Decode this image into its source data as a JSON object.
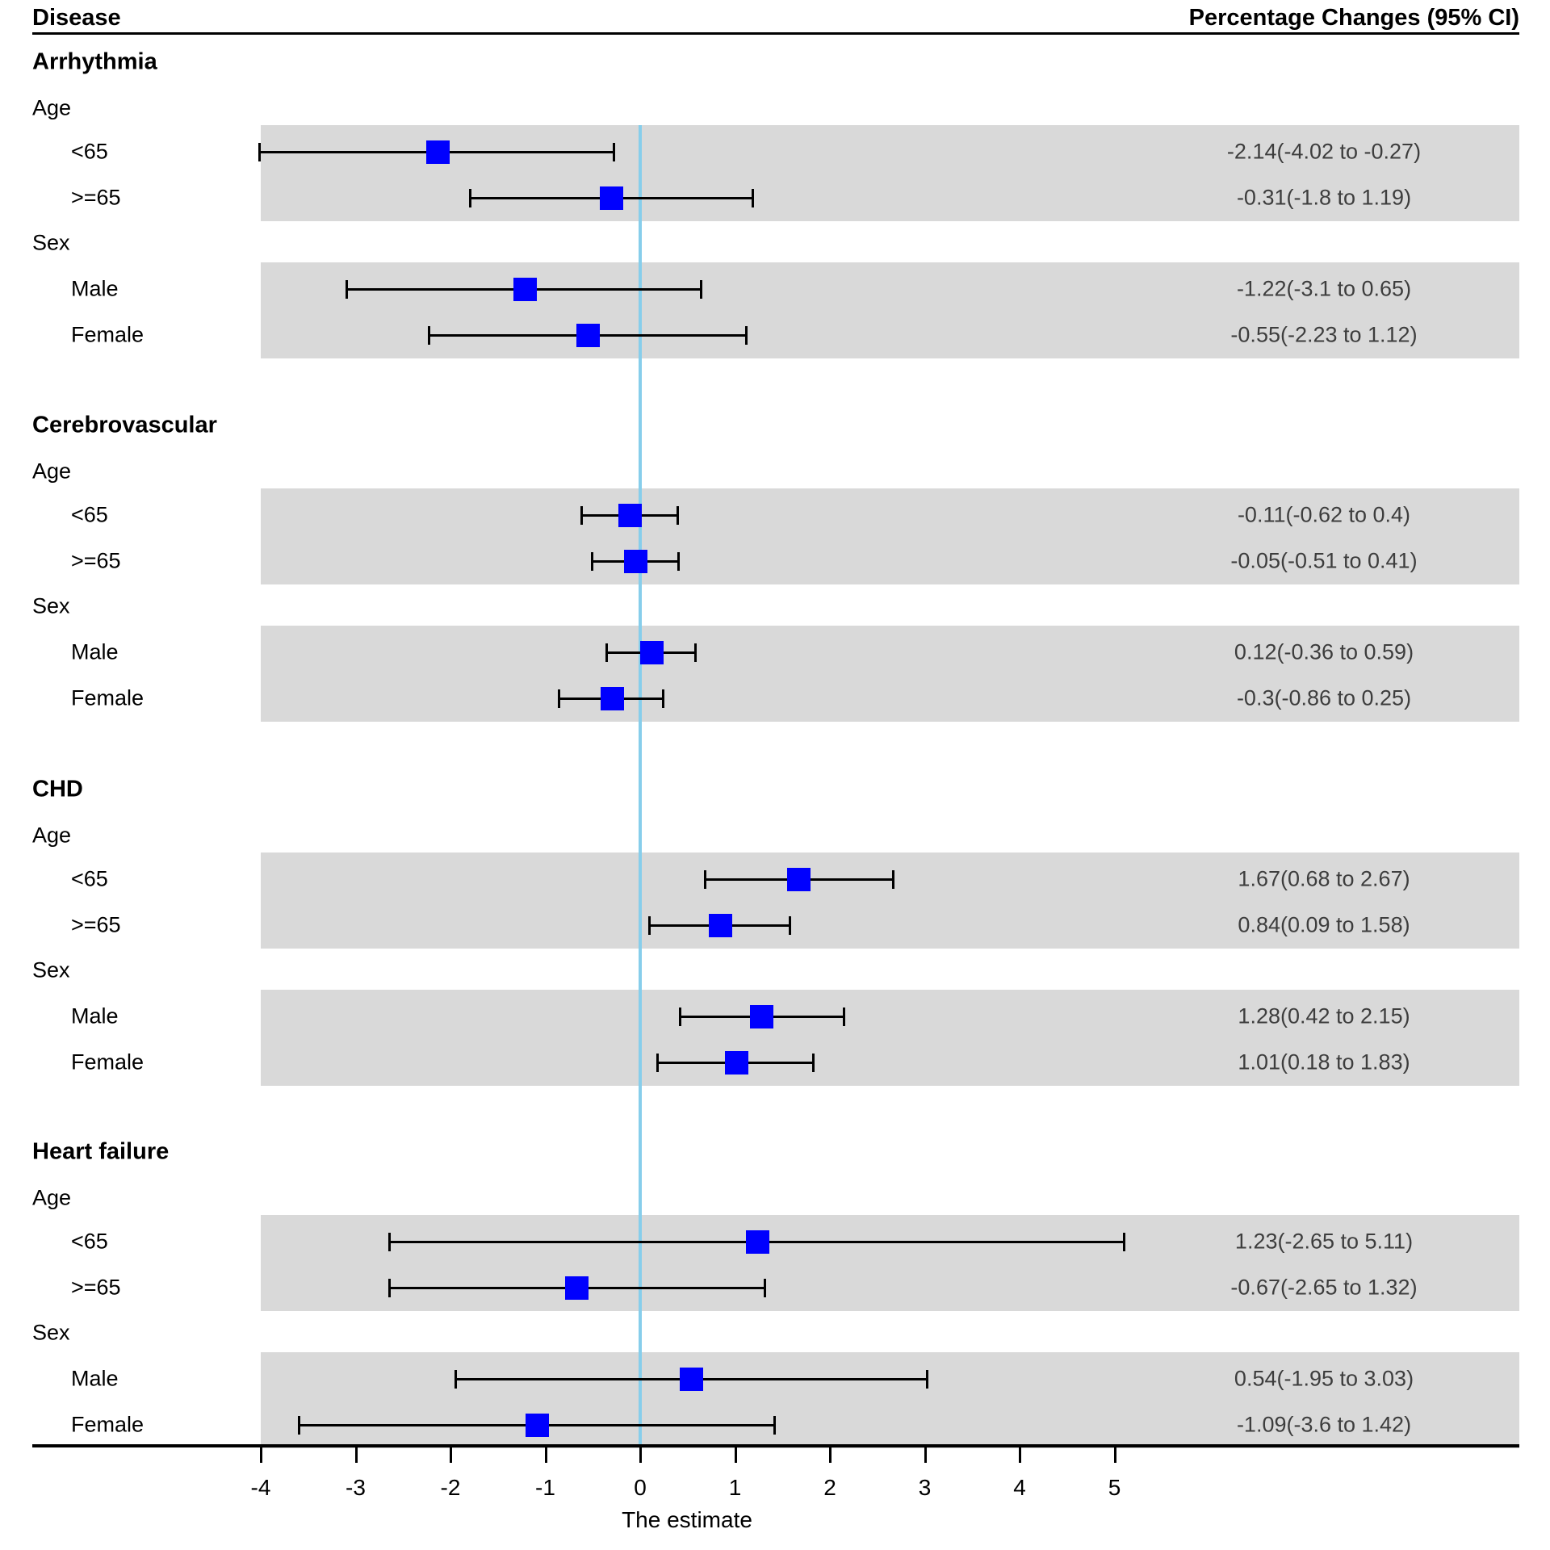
{
  "chart_data": {
    "type": "forest",
    "headers": {
      "disease": "Disease",
      "effect": "Percentage Changes (95% CI)"
    },
    "xlabel": "The estimate",
    "x_ticks": [
      -4,
      -3,
      -2,
      -1,
      0,
      1,
      2,
      3,
      4,
      5
    ],
    "x_range": [
      -4,
      5
    ],
    "zero_line_value": 0,
    "grid": false,
    "legend": "none",
    "colors": {
      "marker": "#0000fe",
      "zero_line": "#87ceeb",
      "band": "#d9d9d9",
      "whisker": "#000000",
      "ci_text": "#3d3d3d"
    },
    "sections": [
      {
        "name": "Arrhythmia",
        "groups": [
          {
            "name": "Age",
            "rows": [
              {
                "label": "<65",
                "estimate": -2.14,
                "lower": -4.02,
                "upper": -0.27,
                "ci_text": "-2.14(-4.02 to -0.27)"
              },
              {
                "label": ">=65",
                "estimate": -0.31,
                "lower": -1.8,
                "upper": 1.19,
                "ci_text": "-0.31(-1.8 to 1.19)"
              }
            ]
          },
          {
            "name": "Sex",
            "rows": [
              {
                "label": "Male",
                "estimate": -1.22,
                "lower": -3.1,
                "upper": 0.65,
                "ci_text": "-1.22(-3.1 to 0.65)"
              },
              {
                "label": "Female",
                "estimate": -0.55,
                "lower": -2.23,
                "upper": 1.12,
                "ci_text": "-0.55(-2.23 to 1.12)"
              }
            ]
          }
        ]
      },
      {
        "name": "Cerebrovascular",
        "groups": [
          {
            "name": "Age",
            "rows": [
              {
                "label": "<65",
                "estimate": -0.11,
                "lower": -0.62,
                "upper": 0.4,
                "ci_text": "-0.11(-0.62 to 0.4)"
              },
              {
                "label": ">=65",
                "estimate": -0.05,
                "lower": -0.51,
                "upper": 0.41,
                "ci_text": "-0.05(-0.51 to 0.41)"
              }
            ]
          },
          {
            "name": "Sex",
            "rows": [
              {
                "label": "Male",
                "estimate": 0.12,
                "lower": -0.36,
                "upper": 0.59,
                "ci_text": "0.12(-0.36 to 0.59)"
              },
              {
                "label": "Female",
                "estimate": -0.3,
                "lower": -0.86,
                "upper": 0.25,
                "ci_text": "-0.3(-0.86 to 0.25)"
              }
            ]
          }
        ]
      },
      {
        "name": "CHD",
        "groups": [
          {
            "name": "Age",
            "rows": [
              {
                "label": "<65",
                "estimate": 1.67,
                "lower": 0.68,
                "upper": 2.67,
                "ci_text": "1.67(0.68 to 2.67)"
              },
              {
                "label": ">=65",
                "estimate": 0.84,
                "lower": 0.09,
                "upper": 1.58,
                "ci_text": "0.84(0.09 to 1.58)"
              }
            ]
          },
          {
            "name": "Sex",
            "rows": [
              {
                "label": "Male",
                "estimate": 1.28,
                "lower": 0.42,
                "upper": 2.15,
                "ci_text": "1.28(0.42 to 2.15)"
              },
              {
                "label": "Female",
                "estimate": 1.01,
                "lower": 0.18,
                "upper": 1.83,
                "ci_text": "1.01(0.18 to 1.83)"
              }
            ]
          }
        ]
      },
      {
        "name": "Heart failure",
        "groups": [
          {
            "name": "Age",
            "rows": [
              {
                "label": "<65",
                "estimate": 1.23,
                "lower": -2.65,
                "upper": 5.11,
                "ci_text": "1.23(-2.65 to 5.11)"
              },
              {
                "label": ">=65",
                "estimate": -0.67,
                "lower": -2.65,
                "upper": 1.32,
                "ci_text": "-0.67(-2.65 to 1.32)"
              }
            ]
          },
          {
            "name": "Sex",
            "rows": [
              {
                "label": "Male",
                "estimate": 0.54,
                "lower": -1.95,
                "upper": 3.03,
                "ci_text": "0.54(-1.95 to 3.03)"
              },
              {
                "label": "Female",
                "estimate": -1.09,
                "lower": -3.6,
                "upper": 1.42,
                "ci_text": "-1.09(-3.6 to 1.42)"
              }
            ]
          }
        ]
      }
    ]
  }
}
